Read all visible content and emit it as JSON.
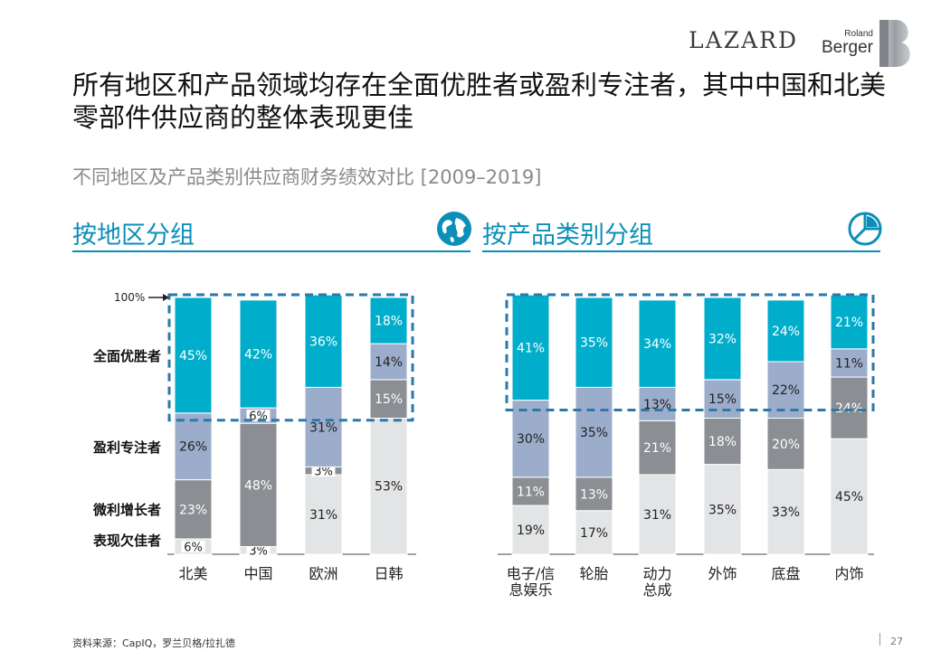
{
  "header": {
    "logo_left": "LAZARD",
    "logo_right_small": "Roland",
    "logo_right_large": "Berger"
  },
  "title": "所有地区和产品领域均存在全面优胜者或盈利专注者，其中中国和北美零部件供应商的整体表现更佳",
  "subtitle": "不同地区及产品类别供应商财务绩效对比 [2009–2019]",
  "sections": {
    "left": "按地区分组",
    "right": "按产品类别分组"
  },
  "footer": {
    "source": "资料来源：CapIQ，罗兰贝格/拉扎德",
    "page": "27"
  },
  "chart_data": {
    "type": "bar",
    "stacked": true,
    "y_ref_label": "100%",
    "groups": [
      {
        "name": "按地区分组",
        "categories": [
          "北美",
          "中国",
          "欧洲",
          "日韩"
        ],
        "series": [
          {
            "name": "表现欠佳者",
            "values": [
              6,
              3,
              31,
              53
            ],
            "color": "#e3e4e6",
            "text_color": "#222222"
          },
          {
            "name": "微利增长者",
            "values": [
              23,
              48,
              3,
              15
            ],
            "color": "#8b8e92",
            "text_color": "#ffffff"
          },
          {
            "name": "盈利专注者",
            "values": [
              26,
              6,
              31,
              14
            ],
            "color": "#9cadcc",
            "text_color": "#222222"
          },
          {
            "name": "全面优胜者",
            "values": [
              45,
              42,
              36,
              18
            ],
            "color": "#00aecb",
            "text_color": "#ffffff"
          }
        ]
      },
      {
        "name": "按产品类别分组",
        "categories": [
          "电子/信\n息娱乐",
          "轮胎",
          "动力\n总成",
          "外饰",
          "底盘",
          "内饰"
        ],
        "series": [
          {
            "name": "表现欠佳者",
            "values": [
              19,
              17,
              31,
              35,
              33,
              45
            ],
            "color": "#e3e4e6",
            "text_color": "#222222"
          },
          {
            "name": "微利增长者",
            "values": [
              11,
              13,
              21,
              18,
              20,
              24
            ],
            "color": "#8b8e92",
            "text_color": "#ffffff"
          },
          {
            "name": "盈利专注者",
            "values": [
              30,
              35,
              13,
              15,
              22,
              11
            ],
            "color": "#9cadcc",
            "text_color": "#222222"
          },
          {
            "name": "全面优胜者",
            "values": [
              41,
              35,
              34,
              32,
              24,
              21
            ],
            "color": "#00aecb",
            "text_color": "#ffffff"
          }
        ]
      }
    ],
    "legend_labels": [
      "全面优胜者",
      "盈利专注者",
      "微利增长者",
      "表现欠佳者"
    ],
    "highlight_box": "dashed outline around 全面优胜者 segments",
    "colors": {
      "accent": "#0b8fb8",
      "dash": "#2a79a8"
    }
  }
}
